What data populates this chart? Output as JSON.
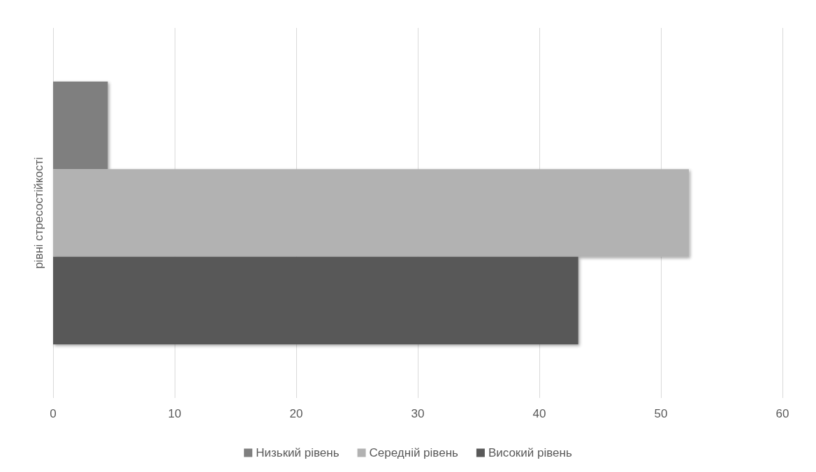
{
  "chart_data": {
    "type": "bar",
    "orientation": "horizontal",
    "categories": [
      "рівні стресостійкості"
    ],
    "series": [
      {
        "name": "Низький рівень",
        "color": "#7f7f7f",
        "values": [
          4.5
        ]
      },
      {
        "name": "Середній рівень",
        "color": "#b2b2b2",
        "values": [
          52.3
        ]
      },
      {
        "name": "Високий рівень",
        "color": "#595959",
        "values": [
          43.2
        ]
      }
    ],
    "xlim": [
      0,
      60
    ],
    "xticks": [
      0,
      10,
      20,
      30,
      40,
      50,
      60
    ],
    "grid": "x",
    "legend": "bottom"
  }
}
